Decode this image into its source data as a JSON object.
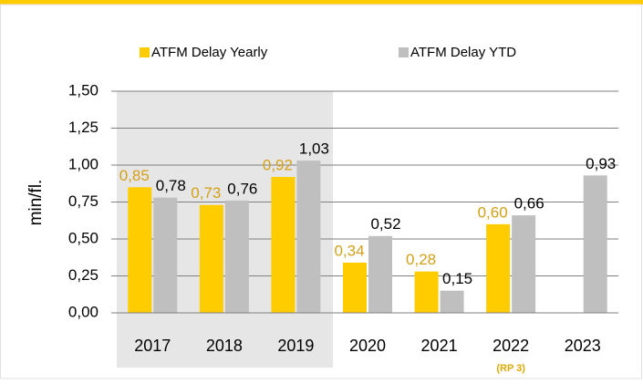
{
  "chart_data": {
    "type": "bar",
    "categories": [
      "2017",
      "2018",
      "2019",
      "2020",
      "2021",
      "2022",
      "2023"
    ],
    "series": [
      {
        "name": "ATFM Delay Yearly",
        "color": "#ffcc00",
        "values": [
          0.85,
          0.73,
          0.92,
          0.34,
          0.28,
          0.6,
          null
        ],
        "value_labels": [
          "0,85",
          "0,73",
          "0,92",
          "0,34",
          "0,28",
          "0,60",
          null
        ],
        "label_color": "#d4a017"
      },
      {
        "name": "ATFM Delay YTD",
        "color": "#bfbfbf",
        "values": [
          0.78,
          0.76,
          1.03,
          0.52,
          0.15,
          0.66,
          0.93
        ],
        "value_labels": [
          "0,78",
          "0,76",
          "1,03",
          "0,52",
          "0,15",
          "0,66",
          "0,93"
        ],
        "label_color": "#000000"
      }
    ],
    "ylabel": "min/fl.",
    "annotation": "(RP 3)",
    "ylim": [
      0,
      1.5
    ],
    "yticks": [
      {
        "value": 0,
        "label": "0,00"
      },
      {
        "value": 0.25,
        "label": "0,25"
      },
      {
        "value": 0.5,
        "label": "0,50"
      },
      {
        "value": 0.75,
        "label": "0,75"
      },
      {
        "value": 1,
        "label": "1,00"
      },
      {
        "value": 1.25,
        "label": "1,25"
      },
      {
        "value": 1.5,
        "label": "1,50"
      }
    ],
    "grid": true
  }
}
